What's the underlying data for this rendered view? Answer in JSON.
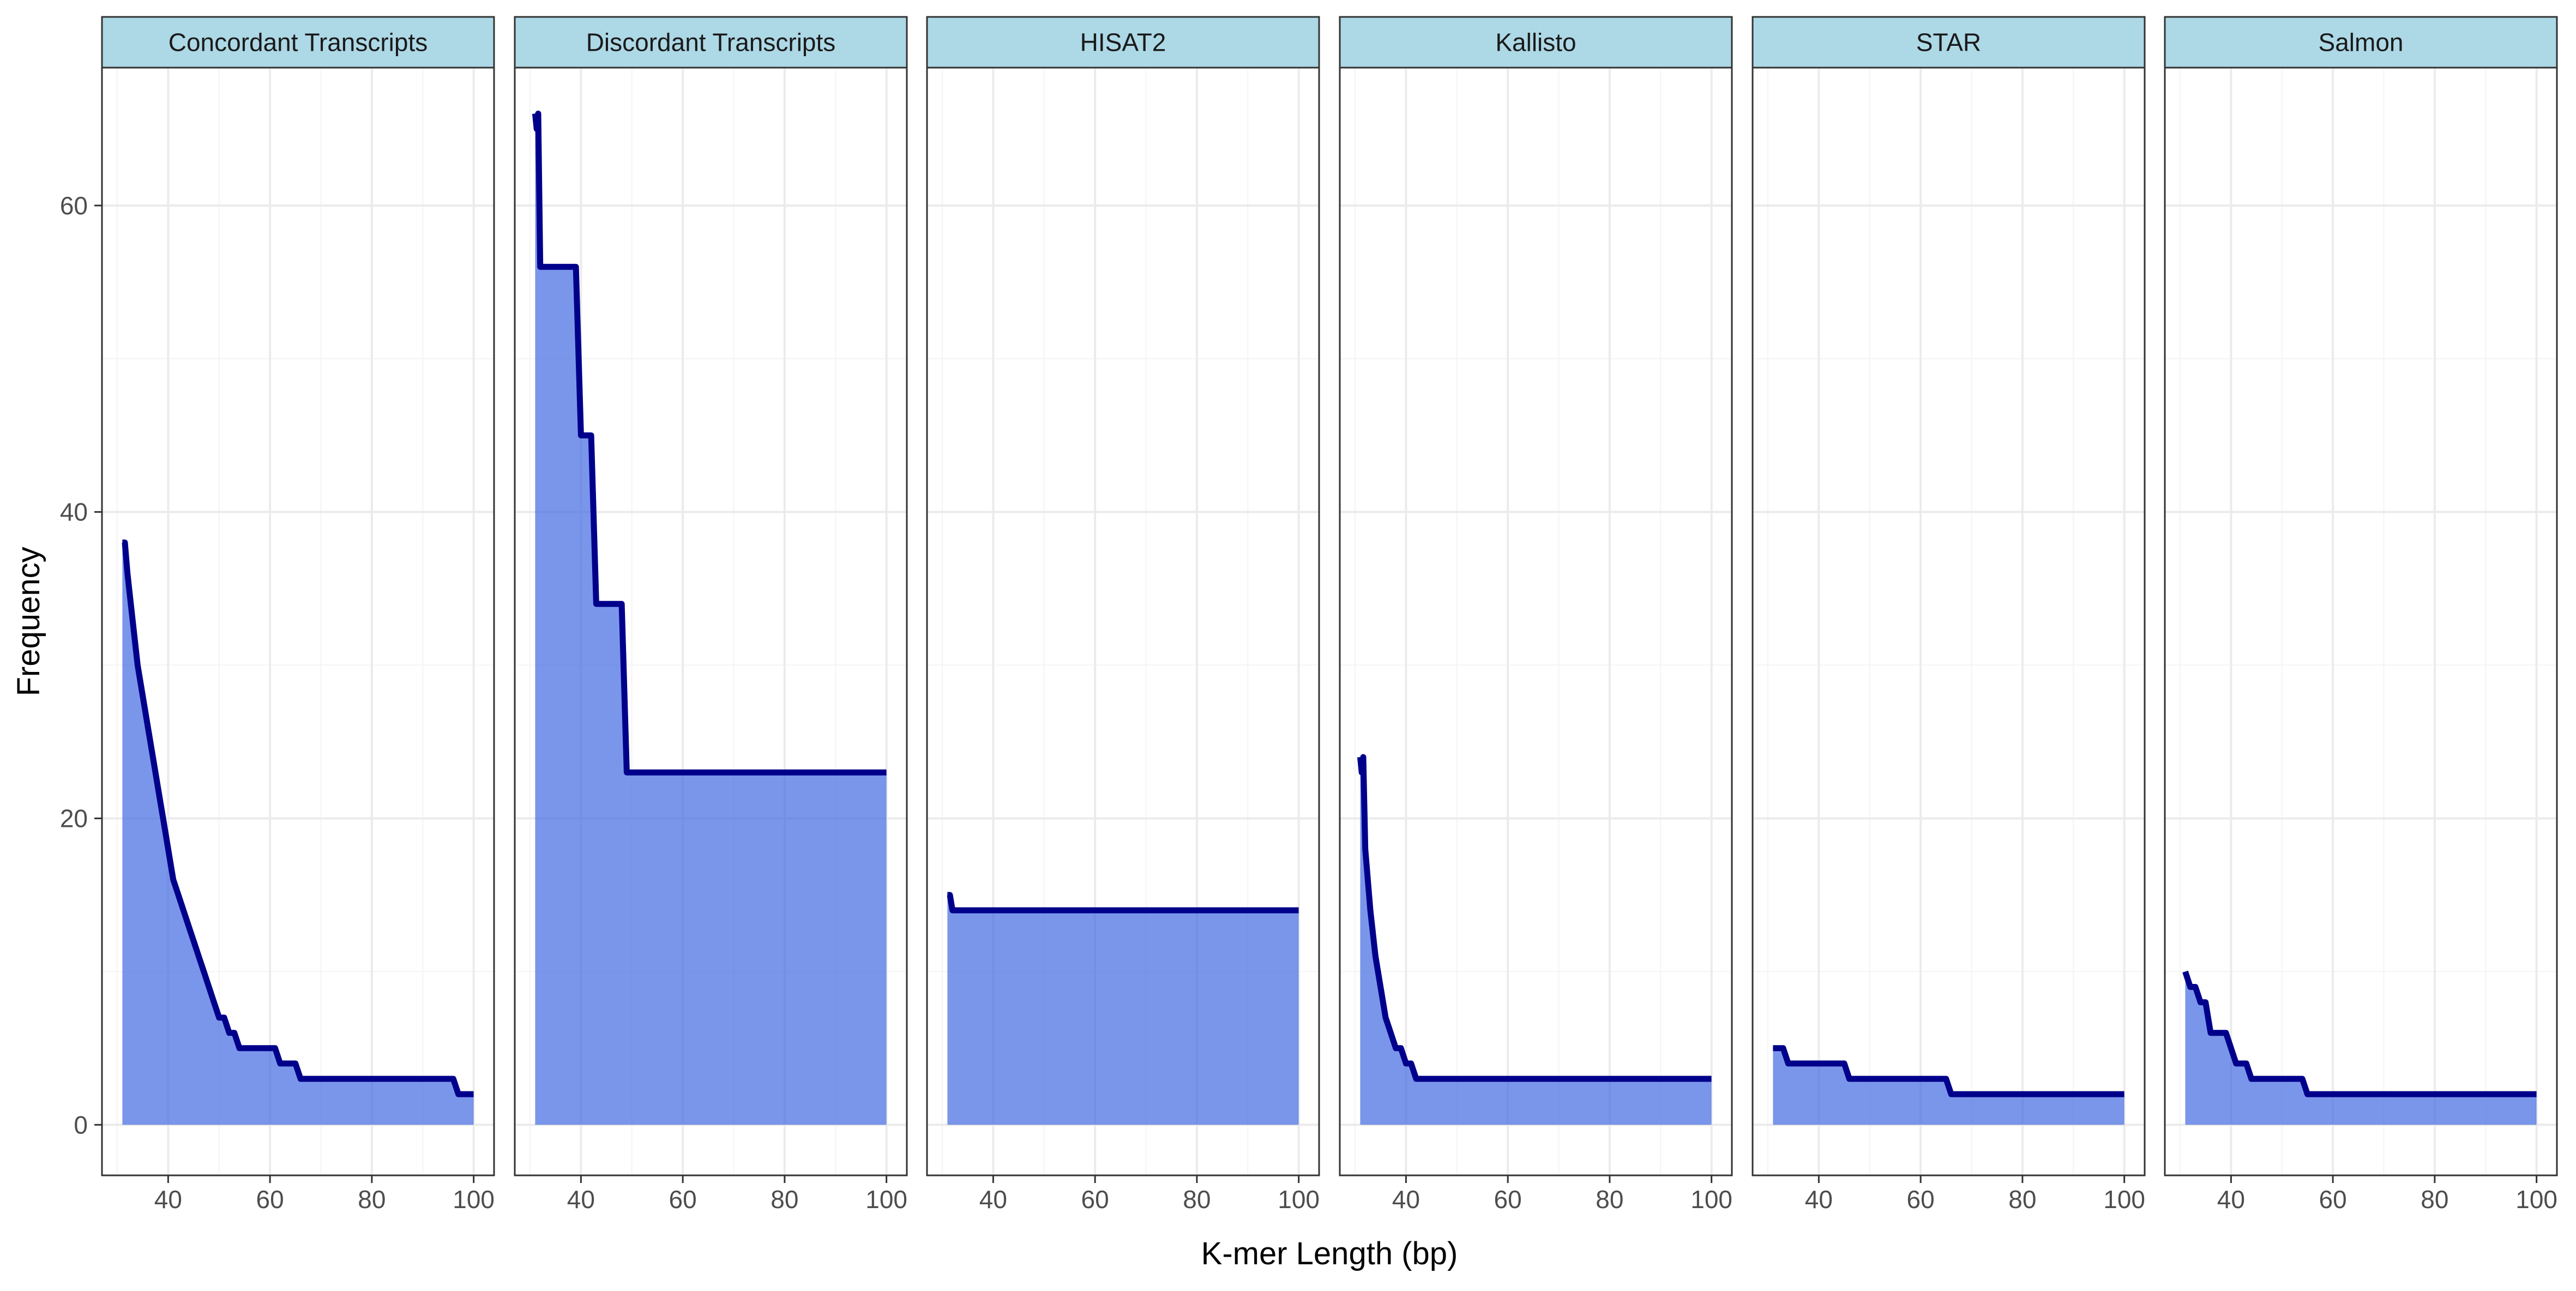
{
  "chart_data": {
    "type": "area",
    "xlabel": "K-mer Length (bp)",
    "ylabel": "Frequency",
    "xlim": [
      27,
      104
    ],
    "ylim": [
      -3.3,
      69
    ],
    "x_ticks": [
      40,
      60,
      80,
      100
    ],
    "y_ticks": [
      0,
      20,
      40,
      60
    ],
    "grid": true,
    "legend": "none",
    "colors": {
      "line": "#00008B",
      "fill": "#4169E1",
      "fill_opacity": 0.7,
      "strip_bg": "#ADD8E6",
      "grid_major": "#EBEBEB",
      "grid_minor": "#F4F4F4",
      "panel_border": "#333333"
    },
    "panels": [
      {
        "name": "Concordant Transcripts",
        "x": [
          31,
          31.5,
          32,
          33,
          34,
          35,
          36,
          37,
          38,
          39,
          40,
          41,
          42,
          43,
          44,
          45,
          46,
          47,
          48,
          49,
          50,
          51,
          52,
          53,
          54,
          55,
          56,
          57,
          58,
          59,
          60,
          61,
          62,
          63,
          64,
          65,
          66,
          70,
          80,
          90,
          95,
          96,
          97,
          98,
          99,
          100
        ],
        "y": [
          38,
          38,
          36,
          33,
          30,
          28,
          26,
          24,
          22,
          20,
          18,
          16,
          15,
          14,
          13,
          12,
          11,
          10,
          9,
          8,
          7,
          7,
          6,
          6,
          5,
          5,
          5,
          5,
          5,
          5,
          5,
          5,
          4,
          4,
          4,
          4,
          3,
          3,
          3,
          3,
          3,
          3,
          2,
          2,
          2,
          2
        ]
      },
      {
        "name": "Discordant Transcripts",
        "x": [
          31,
          31.3,
          31.6,
          32,
          33,
          34,
          35,
          36,
          37,
          38,
          39,
          40,
          41,
          42,
          43,
          44,
          45,
          46,
          47,
          48,
          49,
          50,
          60,
          70,
          80,
          90,
          100
        ],
        "y": [
          66,
          65,
          66,
          56,
          56,
          56,
          56,
          56,
          56,
          56,
          56,
          45,
          45,
          45,
          34,
          34,
          34,
          34,
          34,
          34,
          23,
          23,
          23,
          23,
          23,
          23,
          23
        ]
      },
      {
        "name": "HISAT2",
        "x": [
          31,
          31.5,
          32,
          40,
          50,
          60,
          70,
          80,
          90,
          100
        ],
        "y": [
          15,
          15,
          14,
          14,
          14,
          14,
          14,
          14,
          14,
          14
        ]
      },
      {
        "name": "Kallisto",
        "x": [
          31,
          31.3,
          31.6,
          32,
          33,
          34,
          35,
          36,
          37,
          38,
          39,
          40,
          41,
          42,
          43,
          50,
          60,
          70,
          80,
          90,
          100
        ],
        "y": [
          24,
          23,
          24,
          18,
          14,
          11,
          9,
          7,
          6,
          5,
          5,
          4,
          4,
          3,
          3,
          3,
          3,
          3,
          3,
          3,
          3
        ]
      },
      {
        "name": "STAR",
        "x": [
          31,
          32,
          33,
          34,
          40,
          45,
          46,
          47,
          50,
          60,
          65,
          66,
          67,
          70,
          80,
          90,
          100
        ],
        "y": [
          5,
          5,
          5,
          4,
          4,
          4,
          3,
          3,
          3,
          3,
          3,
          2,
          2,
          2,
          2,
          2,
          2
        ]
      },
      {
        "name": "Salmon",
        "x": [
          31,
          32,
          33,
          34,
          35,
          36,
          37,
          38,
          39,
          40,
          41,
          42,
          43,
          44,
          50,
          54,
          55,
          56,
          60,
          70,
          80,
          90,
          100
        ],
        "y": [
          10,
          9,
          9,
          8,
          8,
          6,
          6,
          6,
          6,
          5,
          4,
          4,
          4,
          3,
          3,
          3,
          2,
          2,
          2,
          2,
          2,
          2,
          2
        ]
      }
    ]
  }
}
